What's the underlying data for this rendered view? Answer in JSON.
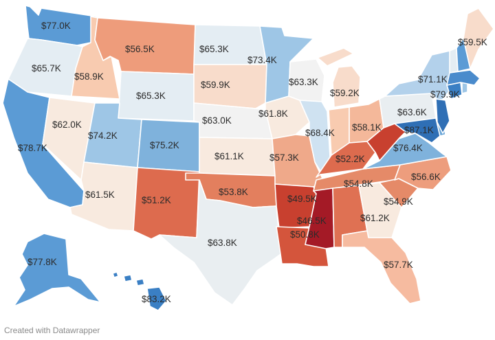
{
  "footer": {
    "credit": "Created with Datawrapper"
  },
  "colors": {
    "very_high": "#3a7fc4",
    "high": "#5b9bd5",
    "mid_high": "#9ec6e6",
    "light_blue": "#cfe2f1",
    "neutral_blue": "#e4edf3",
    "neutral_warm": "#f8eadf",
    "light_orange": "#f8cbb0",
    "orange": "#ee9c7b",
    "red_orange": "#dd6b4e",
    "red": "#c8402f",
    "dark_red": "#a41a26"
  },
  "states": [
    {
      "id": "WA",
      "value": "$77.0K",
      "color": "#5b9bd5"
    },
    {
      "id": "OR",
      "value": "$65.7K",
      "color": "#e4edf3"
    },
    {
      "id": "CA",
      "value": "$78.7K",
      "color": "#5b9bd5"
    },
    {
      "id": "ID",
      "value": "$58.9K",
      "color": "#f8cbb0"
    },
    {
      "id": "NV",
      "value": "$62.0K",
      "color": "#f8eadf"
    },
    {
      "id": "MT",
      "value": "$56.5K",
      "color": "#ee9c7b"
    },
    {
      "id": "WY",
      "value": "$65.3K",
      "color": "#e4edf3"
    },
    {
      "id": "UT",
      "value": "$74.2K",
      "color": "#9ec6e6"
    },
    {
      "id": "AZ",
      "value": "$61.5K",
      "color": "#f8eadf"
    },
    {
      "id": "CO",
      "value": "$75.2K",
      "color": "#7fb2dc"
    },
    {
      "id": "NM",
      "value": "$51.2K",
      "color": "#dd6b4e"
    },
    {
      "id": "ND",
      "value": "$65.3K",
      "color": "#e4edf3"
    },
    {
      "id": "SD",
      "value": "$59.9K",
      "color": "#f8dccb"
    },
    {
      "id": "NE",
      "value": "$63.0K",
      "color": "#f2f2f2"
    },
    {
      "id": "KS",
      "value": "$61.1K",
      "color": "#f8eadf"
    },
    {
      "id": "OK",
      "value": "$53.8K",
      "color": "#e37f5e"
    },
    {
      "id": "TX",
      "value": "$63.8K",
      "color": "#e9eef1"
    },
    {
      "id": "MN",
      "value": "$73.4K",
      "color": "#9ec6e6"
    },
    {
      "id": "IA",
      "value": "$61.8K",
      "color": "#f8eadf"
    },
    {
      "id": "MO",
      "value": "$57.3K",
      "color": "#efa98a"
    },
    {
      "id": "AR",
      "value": "$49.5K",
      "color": "#c8402f"
    },
    {
      "id": "LA",
      "value": "$50.8K",
      "color": "#d4553c"
    },
    {
      "id": "WI",
      "value": "$63.3K",
      "color": "#f2f2f2"
    },
    {
      "id": "IL",
      "value": "$68.4K",
      "color": "#cfe2f1"
    },
    {
      "id": "MI",
      "value": "$59.2K",
      "color": "#f8dccb"
    },
    {
      "id": "IN",
      "value": "$58.1K",
      "color": "#f8cbb0"
    },
    {
      "id": "OH",
      "value": "$58.1K",
      "color": "#f4b89a"
    },
    {
      "id": "KY",
      "value": "$52.2K",
      "color": "#dd6b4e"
    },
    {
      "id": "TN",
      "value": "$54.8K",
      "color": "#e58a68"
    },
    {
      "id": "MS",
      "value": "$46.5K",
      "color": "#a41a26"
    },
    {
      "id": "AL",
      "value": "$50.8K",
      "color": "#df7153"
    },
    {
      "id": "GA",
      "value": "$61.2K",
      "color": "#f8eadf"
    },
    {
      "id": "FL",
      "value": "$57.7K",
      "color": "#f6bba0"
    },
    {
      "id": "SC",
      "value": "$54.9K",
      "color": "#e58a68"
    },
    {
      "id": "NC",
      "value": "$56.6K",
      "color": "#ed9d7d"
    },
    {
      "id": "VA",
      "value": "$76.4K",
      "color": "#7fb2dc"
    },
    {
      "id": "WV",
      "value": "",
      "color": "#c8402f"
    },
    {
      "id": "PA",
      "value": "$63.6K",
      "color": "#e9eef1"
    },
    {
      "id": "NY",
      "value": "$71.1K",
      "color": "#b3d1eb"
    },
    {
      "id": "MD",
      "value": "$87.1K",
      "color": "#2f6fb5"
    },
    {
      "id": "NJ",
      "value": "",
      "color": "#2f6fb5"
    },
    {
      "id": "DE",
      "value": "",
      "color": "#6aa6d8"
    },
    {
      "id": "CT",
      "value": "",
      "color": "#3a7fc4"
    },
    {
      "id": "MA",
      "value": "$79.9K",
      "color": "#4a8bcc"
    },
    {
      "id": "RI",
      "value": "",
      "color": "#9ec6e6"
    },
    {
      "id": "VT",
      "value": "",
      "color": "#e4edf3"
    },
    {
      "id": "NH",
      "value": "",
      "color": "#5b9bd5"
    },
    {
      "id": "ME",
      "value": "$59.5K",
      "color": "#f8dccb"
    },
    {
      "id": "AK",
      "value": "$77.8K",
      "color": "#5b9bd5"
    },
    {
      "id": "HI",
      "value": "$83.2K",
      "color": "#3a7fc4"
    }
  ]
}
